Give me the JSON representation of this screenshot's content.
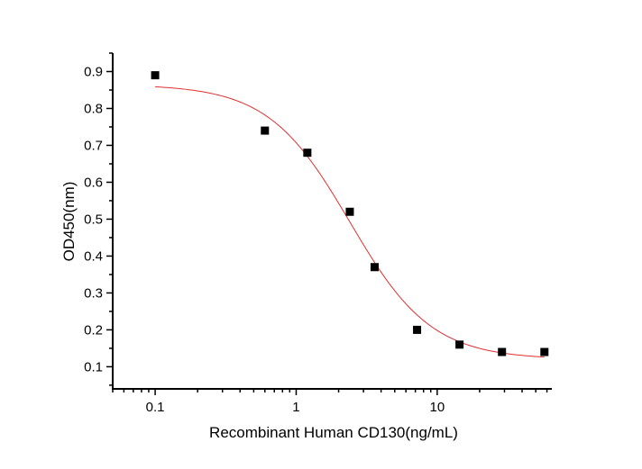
{
  "chart_data": {
    "type": "scatter",
    "title": "",
    "xlabel": "Recombinant Human CD130(ng/mL)",
    "ylabel": "OD450(nm)",
    "xscale": "log",
    "xlim": [
      0.05,
      65
    ],
    "ylim": [
      0.04,
      0.95
    ],
    "xticks": [
      0.1,
      1,
      10
    ],
    "xtick_labels": [
      "0.1",
      "1",
      "10"
    ],
    "yticks": [
      0.1,
      0.2,
      0.3,
      0.4,
      0.5,
      0.6,
      0.7,
      0.8,
      0.9
    ],
    "ytick_labels": [
      "0.1",
      "0.2",
      "0.3",
      "0.4",
      "0.5",
      "0.6",
      "0.7",
      "0.8",
      "0.9"
    ],
    "grid": false,
    "series": [
      {
        "kind": "points",
        "marker": "square",
        "color": "#000000",
        "x": [
          0.1,
          0.6,
          1.2,
          2.4,
          3.6,
          7.2,
          14.4,
          28.8,
          57.6
        ],
        "y": [
          0.89,
          0.74,
          0.68,
          0.52,
          0.37,
          0.2,
          0.16,
          0.14,
          0.14
        ]
      },
      {
        "kind": "fit-curve",
        "model": "4PL",
        "color": "#e03030",
        "top": 0.865,
        "bottom": 0.12,
        "ec50": 2.4,
        "hill": 1.5,
        "x_range": [
          0.1,
          57.6
        ]
      }
    ]
  }
}
